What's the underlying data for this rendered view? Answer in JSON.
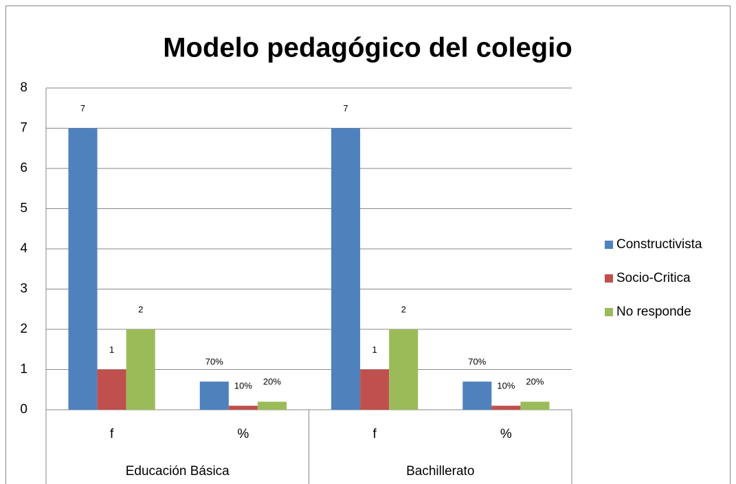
{
  "chart_data": {
    "type": "bar",
    "title": "Modelo pedagógico del colegio",
    "categories": [
      "f",
      "%",
      "f",
      "%"
    ],
    "groups": [
      "Educación Básica",
      "Bachillerato"
    ],
    "series": [
      {
        "name": "Constructivista",
        "color": "#4f81bd",
        "values": [
          7,
          0.7,
          7,
          0.7
        ],
        "value_labels": [
          "7",
          "70%",
          "7",
          "70%"
        ]
      },
      {
        "name": "Socio-Critica",
        "color": "#c0504d",
        "values": [
          1,
          0.1,
          1,
          0.1
        ],
        "value_labels": [
          "1",
          "10%",
          "1",
          "10%"
        ]
      },
      {
        "name": "No responde",
        "color": "#9bbb59",
        "values": [
          2,
          0.2,
          2,
          0.2
        ],
        "value_labels": [
          "2",
          "20%",
          "2",
          "20%"
        ]
      }
    ],
    "ylim": [
      0,
      8
    ],
    "yticks": [
      0,
      1,
      2,
      3,
      4,
      5,
      6,
      7,
      8
    ],
    "grid": true,
    "legend": "right"
  }
}
